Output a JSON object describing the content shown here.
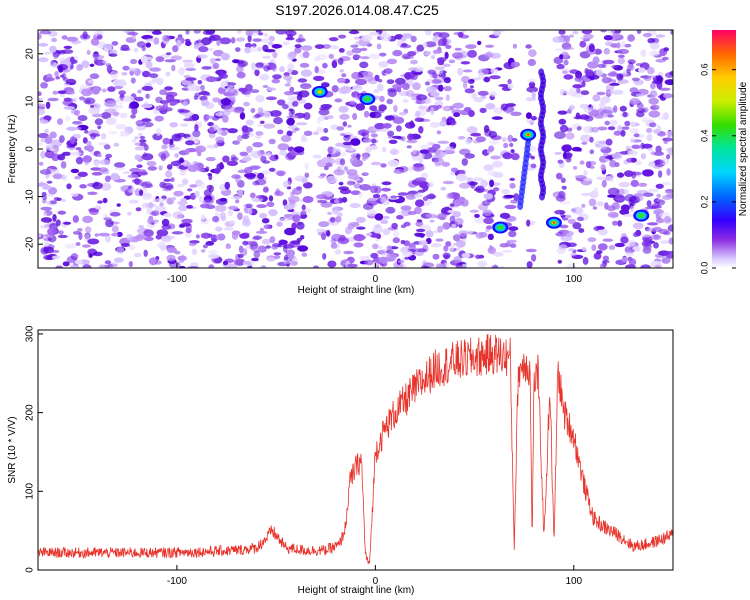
{
  "title": "S197.2026.014.08.47.C25",
  "chart_data": [
    {
      "type": "heatmap",
      "xlabel": "Height of straight line (km)",
      "ylabel": "Frequency (Hz)",
      "xlim": [
        -170,
        150
      ],
      "ylim": [
        -25,
        25
      ],
      "x_ticks": [
        -100,
        0,
        100
      ],
      "y_ticks": [
        -20,
        -10,
        0,
        10,
        20
      ],
      "colorbar": {
        "label": "Normalized spectral amplitude",
        "range": [
          0.0,
          0.72
        ],
        "ticks": [
          0.0,
          0.2,
          0.4,
          0.6
        ],
        "tick_labels": [
          "0.0",
          "0.2",
          "0.4",
          "0.6"
        ]
      },
      "hotspots": [
        {
          "x": -28,
          "y": 12,
          "value": 0.45
        },
        {
          "x": -4,
          "y": 10.5,
          "value": 0.25
        },
        {
          "x": 63,
          "y": -16.5,
          "value": 0.25
        },
        {
          "x": 77,
          "y": 3,
          "value": 0.55
        },
        {
          "x": 90,
          "y": -15.5,
          "value": 0.6
        },
        {
          "x": 134,
          "y": -14,
          "value": 0.35
        }
      ],
      "gaps_x": [
        [
          -33,
          -30
        ],
        [
          -3,
          -2
        ],
        [
          62,
          64
        ],
        [
          71,
          77
        ],
        [
          80,
          92
        ]
      ]
    },
    {
      "type": "line",
      "xlabel": "Height of straight line (km)",
      "ylabel": "SNR (10 * V/V)",
      "xlim": [
        -170,
        150
      ],
      "ylim": [
        0,
        305
      ],
      "x_ticks": [
        -100,
        0,
        100
      ],
      "y_ticks": [
        0,
        100,
        200,
        300
      ],
      "color": "#e8332b",
      "series": [
        {
          "x": [
            -170,
            -150,
            -130,
            -110,
            -90,
            -70,
            -60,
            -55,
            -52,
            -45,
            -35,
            -25,
            -18,
            -15,
            -13,
            -10,
            -7,
            -5,
            -3,
            -1,
            0,
            5,
            10,
            20,
            30,
            40,
            50,
            60,
            65,
            68,
            70,
            72,
            74,
            76,
            78,
            79,
            80,
            82,
            85,
            88,
            90,
            92,
            95,
            100,
            105,
            110,
            115,
            120,
            125,
            130,
            135,
            140,
            145,
            150
          ],
          "y": [
            22,
            22,
            22,
            22,
            23,
            25,
            28,
            40,
            50,
            28,
            25,
            25,
            32,
            55,
            110,
            130,
            140,
            20,
            5,
            100,
            150,
            180,
            200,
            230,
            255,
            265,
            270,
            275,
            272,
            270,
            30,
            250,
            260,
            265,
            250,
            35,
            240,
            250,
            40,
            235,
            30,
            255,
            200,
            170,
            110,
            65,
            55,
            48,
            40,
            30,
            32,
            35,
            40,
            45
          ]
        }
      ]
    }
  ]
}
